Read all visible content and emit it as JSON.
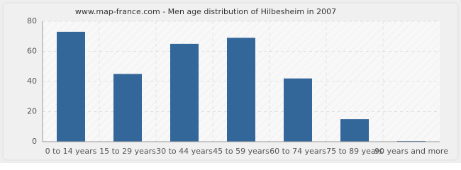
{
  "chart_data": {
    "type": "bar",
    "title": "www.map-france.com - Men age distribution of Hilbesheim in 2007",
    "categories": [
      "0 to 14 years",
      "15 to 29 years",
      "30 to 44 years",
      "45 to 59 years",
      "60 to 74 years",
      "75 to 89 years",
      "90 years and more"
    ],
    "values": [
      73,
      45,
      65,
      69,
      42,
      15,
      0
    ],
    "color": "#336699",
    "ylim": [
      0,
      80
    ],
    "yticks": [
      0,
      20,
      40,
      60,
      80
    ],
    "grid": true
  }
}
